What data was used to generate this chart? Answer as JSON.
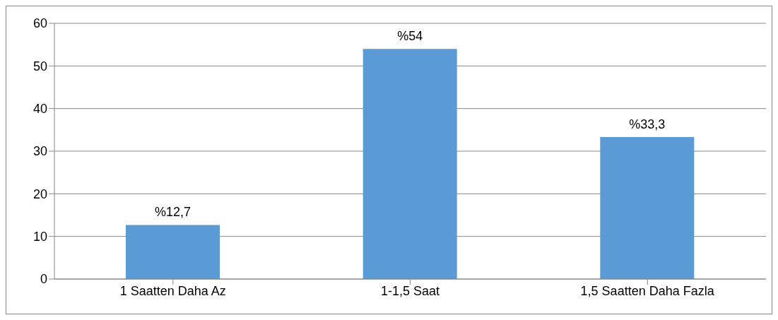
{
  "chart_data": {
    "type": "bar",
    "categories": [
      "1 Saatten Daha Az",
      "1-1,5 Saat",
      "1,5 Saatten Daha Fazla"
    ],
    "values": [
      12.7,
      54,
      33.3
    ],
    "value_labels": [
      "%12,7",
      "%54",
      "%33,3"
    ],
    "color": "#5b9bd5",
    "ylim": [
      0,
      60
    ],
    "yticks": [
      0,
      10,
      20,
      30,
      40,
      50,
      60
    ],
    "grid": "y",
    "legend": false
  }
}
